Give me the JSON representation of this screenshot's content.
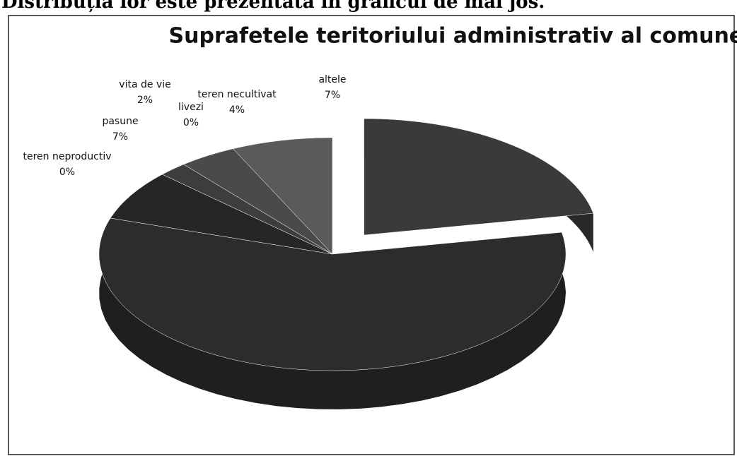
{
  "document_text": "Distribuția lor este prezentată în graficul de mai jos.",
  "chart_data": {
    "type": "pie",
    "title": "Suprafetele teritoriului administrativ al comunei",
    "categories": [
      null,
      null,
      "teren neproductiv",
      "pasune",
      "vita de vie",
      "livezi",
      "teren necultivat",
      "altele"
    ],
    "values": [
      22,
      58,
      0,
      7,
      2,
      0,
      4,
      7
    ],
    "value_labels": [
      null,
      null,
      "0%",
      "7%",
      "2%",
      "0%",
      "4%",
      "7%"
    ],
    "colors": [
      "#3a3a3a",
      "#2c2c2c",
      "#333333",
      "#262626",
      "#3d3d3d",
      "#444444",
      "#4a4a4a",
      "#5a5a5a"
    ],
    "explode": [
      1,
      0,
      0,
      0,
      0,
      0,
      0,
      0
    ]
  }
}
